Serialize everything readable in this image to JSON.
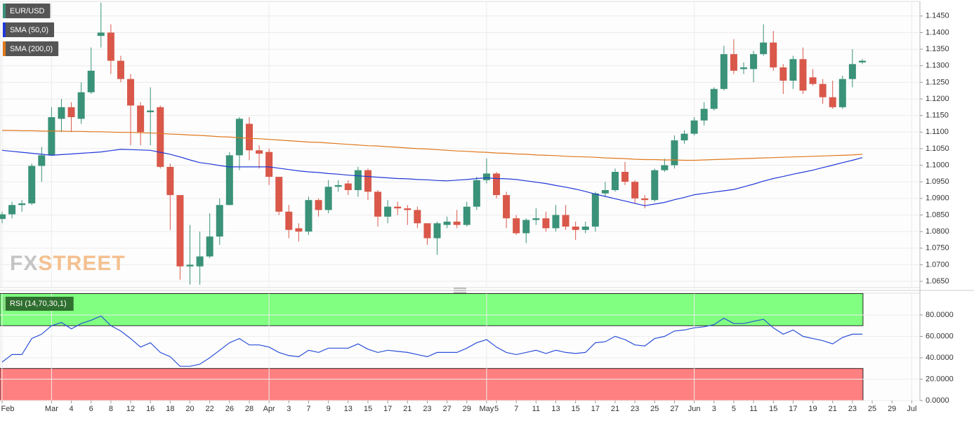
{
  "chart_data": [
    {
      "type": "candlestick",
      "name": "EUR/USD",
      "up_color": "#3a9278",
      "down_color": "#d9584a",
      "open": [
        1.0838,
        1.0852,
        1.088,
        1.0885,
        1.0998,
        1.103,
        1.114,
        1.1175,
        1.114,
        1.122,
        1.139,
        1.14,
        1.1315,
        1.126,
        1.118,
        1.116,
        1.1175,
        1.0995,
        1.091,
        1.0695,
        1.0695,
        1.0725,
        1.0785,
        1.088,
        1.103,
        1.1125,
        1.1045,
        1.104,
        1.0965,
        1.086,
        1.081,
        1.08,
        1.0895,
        1.0865,
        1.0935,
        1.0945,
        1.0925,
        1.0985,
        1.092,
        1.0845,
        1.0875,
        1.087,
        1.0865,
        1.0825,
        1.078,
        1.082,
        1.083,
        1.082,
        1.0875,
        1.0955,
        1.0975,
        1.091,
        1.084,
        1.0795,
        1.0835,
        1.084,
        1.081,
        1.085,
        1.0815,
        1.0805,
        1.0815,
        1.0915,
        1.0925,
        1.098,
        1.095,
        1.09,
        1.0895,
        1.0985,
        1.1,
        1.1075,
        1.1095,
        1.1135,
        1.117,
        1.123,
        1.1335,
        1.129,
        1.129,
        1.1335,
        1.137,
        1.1295,
        1.1255,
        1.132,
        1.1265,
        1.1245,
        1.1205,
        1.1175,
        1.126,
        1.131,
        null,
        null,
        null,
        null,
        null
      ],
      "high": [
        1.086,
        1.089,
        1.0895,
        1.1005,
        1.1055,
        1.1175,
        1.12,
        1.119,
        1.125,
        1.1355,
        1.149,
        1.1425,
        1.133,
        1.1275,
        1.119,
        1.1235,
        1.118,
        1.1005,
        1.091,
        1.082,
        1.08,
        1.0855,
        1.09,
        1.104,
        1.1145,
        1.1145,
        1.106,
        1.105,
        1.0965,
        1.088,
        1.0825,
        1.0905,
        1.09,
        1.0955,
        1.0955,
        1.0955,
        1.0995,
        1.099,
        1.0925,
        1.0895,
        1.089,
        1.088,
        1.0875,
        1.0825,
        1.083,
        1.0845,
        1.0865,
        1.089,
        1.0965,
        1.102,
        1.098,
        1.092,
        1.085,
        1.084,
        1.087,
        1.086,
        1.088,
        1.088,
        1.083,
        1.083,
        1.092,
        1.095,
        1.099,
        1.101,
        1.0955,
        1.091,
        1.099,
        1.102,
        1.109,
        1.1105,
        1.1145,
        1.119,
        1.1235,
        1.136,
        1.138,
        1.131,
        1.1345,
        1.1425,
        1.1405,
        1.1305,
        1.133,
        1.1355,
        1.129,
        1.126,
        1.1255,
        1.127,
        1.135,
        1.132,
        null,
        null,
        null,
        null,
        null
      ],
      "low": [
        1.0825,
        1.084,
        1.086,
        1.088,
        1.095,
        1.1035,
        1.11,
        1.11,
        1.1125,
        1.1215,
        1.1355,
        1.1275,
        1.125,
        1.106,
        1.106,
        1.106,
        1.099,
        1.0805,
        1.0655,
        1.064,
        1.064,
        1.072,
        1.076,
        1.088,
        1.0985,
        1.1015,
        1.099,
        1.094,
        1.085,
        1.078,
        1.077,
        1.079,
        1.0845,
        1.0855,
        1.092,
        1.091,
        1.0905,
        1.0895,
        1.0815,
        1.0825,
        1.085,
        1.082,
        1.081,
        1.076,
        1.073,
        1.081,
        1.081,
        1.0815,
        1.0865,
        1.0945,
        1.09,
        1.081,
        1.079,
        1.0765,
        1.082,
        1.08,
        1.08,
        1.0805,
        1.0775,
        1.0795,
        1.08,
        1.0905,
        1.092,
        1.094,
        1.0885,
        1.087,
        1.089,
        1.098,
        1.099,
        1.1065,
        1.109,
        1.112,
        1.1165,
        1.1225,
        1.1275,
        1.1275,
        1.125,
        1.133,
        1.1285,
        1.1215,
        1.123,
        1.1215,
        1.124,
        1.1185,
        1.117,
        1.117,
        1.1235,
        1.1305,
        null,
        null,
        null,
        null,
        null
      ],
      "close": [
        1.0852,
        1.088,
        1.0885,
        1.0998,
        1.103,
        1.1145,
        1.1175,
        1.1145,
        1.122,
        1.1285,
        1.14,
        1.1315,
        1.126,
        1.118,
        1.11,
        1.1165,
        1.0995,
        1.091,
        1.0695,
        1.07,
        1.0725,
        1.0785,
        1.088,
        1.103,
        1.114,
        1.1045,
        1.1035,
        1.0965,
        1.086,
        1.0805,
        1.08,
        1.0895,
        1.0865,
        1.0935,
        1.094,
        1.0925,
        1.0985,
        1.092,
        1.0845,
        1.0875,
        1.087,
        1.0865,
        1.0825,
        1.078,
        1.0825,
        1.083,
        1.082,
        1.0875,
        1.0955,
        1.0975,
        1.091,
        1.084,
        1.0795,
        1.0835,
        1.084,
        1.081,
        1.085,
        1.0815,
        1.0805,
        1.0815,
        1.0915,
        1.0925,
        1.098,
        1.095,
        1.09,
        1.0895,
        1.0985,
        1.1,
        1.1075,
        1.1095,
        1.1135,
        1.117,
        1.123,
        1.1335,
        1.1285,
        1.1295,
        1.1335,
        1.137,
        1.1295,
        1.1255,
        1.132,
        1.1225,
        1.1245,
        1.1205,
        1.1175,
        1.126,
        1.1305,
        1.1315,
        null,
        null,
        null,
        null,
        null
      ],
      "series": [
        {
          "name": "SMA (50,0)",
          "color": "#2138d8",
          "values": [
            1.1045,
            1.1042,
            1.1039,
            1.1036,
            1.1033,
            1.103,
            1.1032,
            1.1034,
            1.1036,
            1.1038,
            1.104,
            1.1044,
            1.1048,
            1.1047,
            1.1046,
            1.1045,
            1.1039,
            1.1033,
            1.1025,
            1.1016,
            1.1008,
            1.1004,
            1.0999,
            1.0995,
            1.0995,
            1.0995,
            1.0995,
            1.0995,
            1.0991,
            1.0987,
            1.0983,
            1.098,
            1.0978,
            1.0975,
            1.0973,
            1.097,
            1.0968,
            1.0966,
            1.0964,
            1.0962,
            1.096,
            1.0959,
            1.0957,
            1.0956,
            1.0954,
            1.0953,
            1.0955,
            1.0957,
            1.096,
            1.0962,
            1.096,
            1.0959,
            1.0957,
            1.0953,
            1.0949,
            1.0945,
            1.0939,
            1.0934,
            1.0928,
            1.0921,
            1.0913,
            1.0906,
            1.0899,
            1.0892,
            1.0885,
            1.0878,
            1.0883,
            1.0888,
            1.0896,
            1.0903,
            1.0911,
            1.0915,
            1.0919,
            1.0923,
            1.0927,
            1.0935,
            1.0943,
            1.0952,
            1.096,
            1.0966,
            1.0973,
            1.0979,
            1.0985,
            1.0993,
            1.1,
            1.1008,
            1.1015,
            1.1023,
            null,
            null,
            null,
            null,
            null
          ]
        },
        {
          "name": "SMA (200,0)",
          "color": "#e0781c",
          "values": [
            1.1105,
            1.1105,
            1.1104,
            1.1104,
            1.1103,
            1.1103,
            1.1103,
            1.1102,
            1.1102,
            1.1101,
            1.1101,
            1.11,
            1.1099,
            1.1099,
            1.1098,
            1.1097,
            1.1096,
            1.1094,
            1.1093,
            1.1091,
            1.109,
            1.1088,
            1.1086,
            1.1085,
            1.1083,
            1.1081,
            1.108,
            1.1078,
            1.1076,
            1.1074,
            1.1072,
            1.107,
            1.1069,
            1.1067,
            1.1065,
            1.1063,
            1.1061,
            1.1059,
            1.1058,
            1.1056,
            1.1054,
            1.1052,
            1.105,
            1.1049,
            1.1047,
            1.1045,
            1.1043,
            1.1042,
            1.104,
            1.1039,
            1.1037,
            1.1036,
            1.1034,
            1.1033,
            1.1031,
            1.103,
            1.1029,
            1.1027,
            1.1026,
            1.1025,
            1.1024,
            1.1022,
            1.1021,
            1.102,
            1.1018,
            1.1017,
            1.1017,
            1.1016,
            1.1016,
            1.1015,
            1.1015,
            1.1016,
            1.1017,
            1.1018,
            1.1019,
            1.102,
            1.1021,
            1.1022,
            1.1023,
            1.1024,
            1.1025,
            1.1026,
            1.1027,
            1.1028,
            1.1029,
            1.103,
            1.1031,
            1.1033,
            null,
            null,
            null,
            null,
            null
          ]
        }
      ],
      "ylim": [
        1.0631,
        1.1494
      ],
      "yticks": [
        {
          "value": 1.065,
          "label": "1.0650"
        },
        {
          "value": 1.07,
          "label": "1.0700"
        },
        {
          "value": 1.075,
          "label": "1.0750"
        },
        {
          "value": 1.08,
          "label": "1.0800"
        },
        {
          "value": 1.085,
          "label": "1.0850"
        },
        {
          "value": 1.09,
          "label": "1.0900"
        },
        {
          "value": 1.095,
          "label": "1.0950"
        },
        {
          "value": 1.1,
          "label": "1.1000"
        },
        {
          "value": 1.105,
          "label": "1.1050"
        },
        {
          "value": 1.11,
          "label": "1.1100"
        },
        {
          "value": 1.115,
          "label": "1.1150"
        },
        {
          "value": 1.12,
          "label": "1.1200"
        },
        {
          "value": 1.125,
          "label": "1.1250"
        },
        {
          "value": 1.13,
          "label": "1.1300"
        },
        {
          "value": 1.135,
          "label": "1.1350"
        },
        {
          "value": 1.14,
          "label": "1.1400"
        },
        {
          "value": 1.145,
          "label": "1.1450"
        }
      ],
      "grid": true,
      "watermark": {
        "left": "FX",
        "right": "STREET"
      }
    },
    {
      "type": "line",
      "categories": [
        "Feb",
        null,
        null,
        null,
        null,
        "Mar",
        null,
        "4",
        null,
        "6",
        null,
        "8",
        null,
        "12",
        null,
        "16",
        null,
        "18",
        null,
        "20",
        null,
        "22",
        null,
        "26",
        null,
        "28",
        null,
        "Apr",
        null,
        "3",
        null,
        "7",
        null,
        "9",
        null,
        "13",
        null,
        "15",
        null,
        "17",
        null,
        "21",
        null,
        "23",
        null,
        "27",
        null,
        "29",
        null,
        "May",
        "5",
        null,
        "7",
        null,
        "11",
        null,
        "13",
        null,
        "15",
        null,
        "17",
        null,
        "21",
        null,
        "23",
        null,
        "25",
        null,
        "27",
        null,
        "Jun",
        null,
        "3",
        null,
        "5",
        null,
        "11",
        null,
        "15",
        null,
        "17",
        null,
        "19",
        null,
        "21",
        null,
        "23",
        null,
        "25",
        null,
        "29",
        null,
        "Jul"
      ],
      "series": [
        {
          "name": "RSI (14,70,30,1)",
          "color": "#2b4fd8",
          "values": [
            36,
            43,
            43,
            58,
            62,
            70,
            73,
            67,
            72,
            75,
            79,
            70,
            65,
            58,
            50,
            54,
            45,
            41,
            32,
            32,
            34,
            40,
            47,
            54,
            58,
            52,
            52,
            50,
            45,
            42,
            41,
            47,
            45,
            49,
            49,
            49,
            53,
            48,
            45,
            47,
            46,
            45,
            43,
            41,
            45,
            45,
            45,
            49,
            54,
            57,
            50,
            45,
            43,
            45,
            47,
            44,
            47,
            45,
            44,
            45,
            54,
            55,
            60,
            57,
            52,
            51,
            58,
            60,
            65,
            66,
            68,
            69,
            71,
            77,
            72,
            72,
            74,
            76,
            68,
            62,
            66,
            60,
            58,
            56,
            53,
            59,
            62,
            62,
            null,
            null,
            null,
            null,
            null
          ]
        }
      ],
      "zones": [
        {
          "from": 70,
          "to": 100,
          "color": "#80ff80"
        },
        {
          "from": 0,
          "to": 30,
          "color": "#ff8080"
        }
      ],
      "ylim": [
        0,
        100
      ],
      "yticks": [
        {
          "value": 0,
          "label": "0.0000"
        },
        {
          "value": 20,
          "label": "20.0000"
        },
        {
          "value": 40,
          "label": "40.0000"
        },
        {
          "value": 60,
          "label": "60.0000"
        },
        {
          "value": 80,
          "label": "80.0000"
        }
      ],
      "grid": true
    }
  ]
}
